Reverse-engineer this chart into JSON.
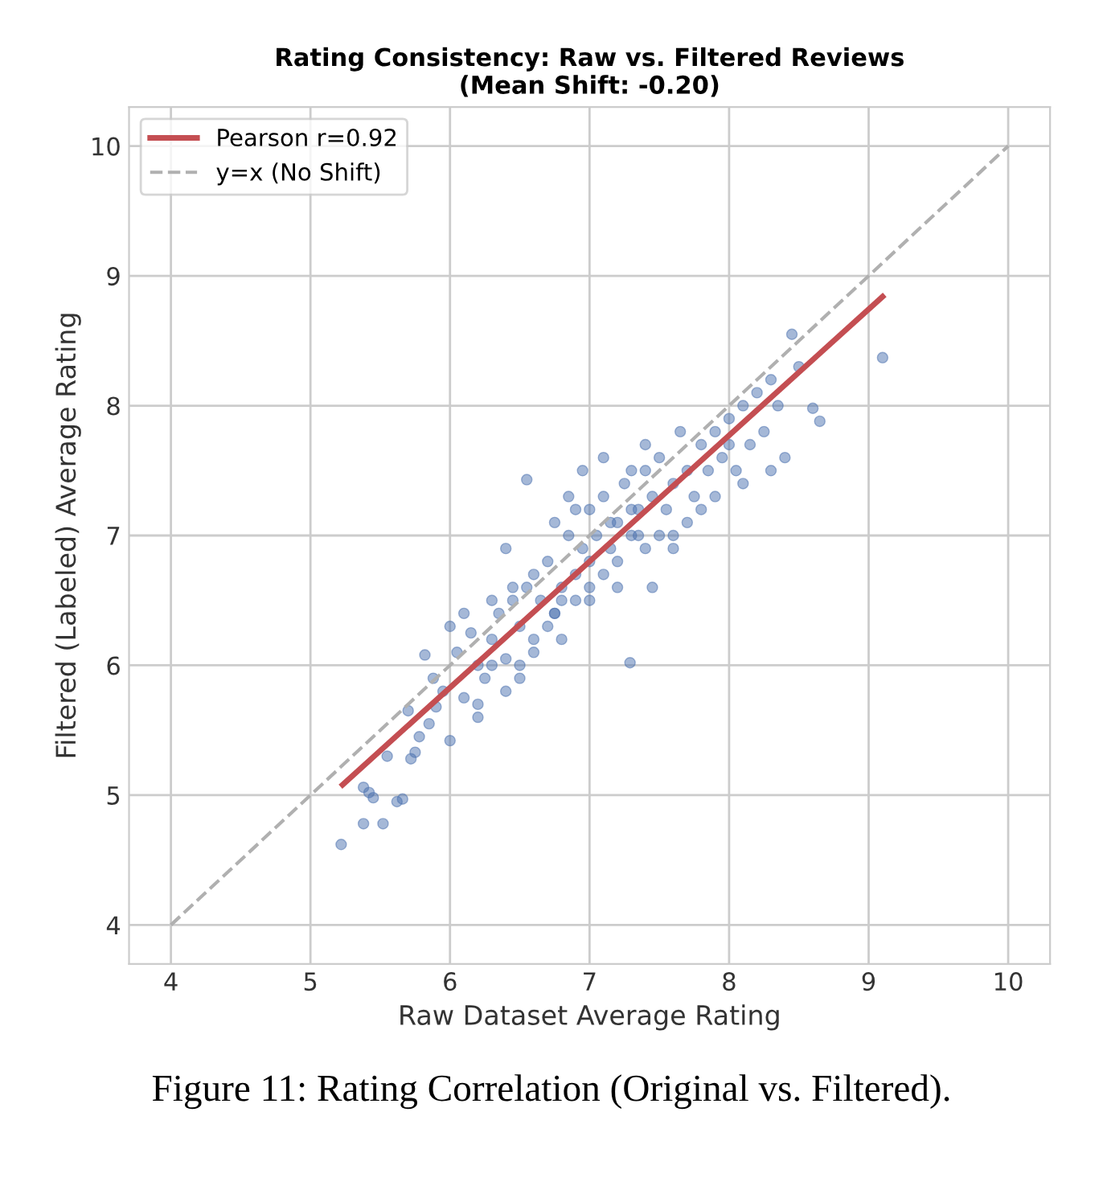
{
  "chart_data": {
    "type": "scatter",
    "title": "Rating Consistency: Raw vs. Filtered Reviews\n(Mean Shift: -0.20)",
    "xlabel": "Raw Dataset Average Rating",
    "ylabel": "Filtered (Labeled) Average Rating",
    "xlim": [
      3.7,
      10.3
    ],
    "ylim": [
      3.7,
      10.3
    ],
    "xticks": [
      4,
      5,
      6,
      7,
      8,
      9,
      10
    ],
    "yticks": [
      4,
      5,
      6,
      7,
      8,
      9,
      10
    ],
    "grid": true,
    "legend": "top left",
    "annotations": [
      "Figure 11: Rating Correlation (Original vs. Filtered)."
    ],
    "series": [
      {
        "color": "#4c72b0",
        "marker": "circle",
        "x": [
          5.22,
          5.38,
          5.38,
          5.42,
          5.45,
          5.52,
          5.62,
          5.66,
          5.55,
          5.72,
          5.75,
          5.78,
          5.85,
          5.9,
          5.95,
          5.82,
          6.0,
          5.7,
          5.88,
          6.05,
          6.1,
          6.2,
          6.15,
          6.25,
          6.3,
          6.35,
          6.4,
          6.45,
          6.5,
          6.55,
          6.1,
          6.3,
          6.2,
          6.4,
          6.6,
          6.65,
          6.7,
          6.75,
          6.8,
          6.85,
          6.9,
          6.95,
          7.0,
          6.5,
          6.6,
          6.7,
          6.8,
          6.9,
          7.0,
          7.05,
          7.1,
          7.15,
          7.2,
          7.25,
          7.3,
          7.35,
          7.4,
          6.55,
          6.75,
          6.85,
          7.0,
          7.1,
          7.2,
          7.3,
          7.4,
          7.45,
          7.5,
          7.55,
          7.6,
          7.65,
          7.7,
          7.75,
          7.8,
          7.29,
          7.45,
          7.6,
          7.7,
          7.85,
          7.9,
          7.95,
          8.0,
          8.05,
          8.1,
          8.15,
          8.2,
          8.25,
          8.3,
          8.35,
          8.4,
          8.45,
          8.5,
          8.6,
          8.65,
          9.1,
          7.1,
          6.9,
          6.4,
          6.0,
          6.3,
          6.6,
          7.0,
          7.3,
          7.6,
          7.9,
          8.1,
          8.3,
          7.4,
          7.2,
          6.8,
          6.5,
          6.2,
          7.5,
          7.8,
          8.0,
          6.95,
          7.15,
          7.35,
          6.75,
          6.45
        ],
        "values": [
          4.62,
          4.78,
          5.06,
          5.02,
          4.98,
          4.78,
          4.95,
          4.97,
          5.3,
          5.28,
          5.33,
          5.45,
          5.55,
          5.68,
          5.8,
          6.08,
          5.42,
          5.65,
          5.9,
          6.1,
          5.75,
          6.0,
          6.25,
          5.9,
          6.2,
          6.4,
          6.05,
          6.5,
          6.3,
          6.6,
          6.4,
          6.5,
          5.6,
          5.8,
          6.2,
          6.5,
          6.8,
          6.4,
          6.6,
          7.0,
          6.7,
          6.9,
          7.2,
          6.0,
          6.1,
          6.3,
          6.5,
          6.5,
          6.8,
          7.0,
          7.3,
          6.9,
          7.1,
          7.4,
          7.2,
          7.0,
          7.5,
          7.43,
          7.1,
          7.3,
          6.6,
          6.7,
          6.8,
          7.5,
          6.9,
          7.3,
          7.6,
          7.2,
          7.4,
          7.8,
          7.5,
          7.3,
          7.7,
          6.02,
          6.6,
          7.0,
          7.1,
          7.5,
          7.8,
          7.6,
          7.9,
          7.5,
          8.0,
          7.7,
          8.1,
          7.8,
          8.2,
          8.0,
          7.6,
          8.55,
          8.3,
          7.98,
          7.88,
          8.37,
          7.6,
          7.2,
          6.9,
          6.3,
          6.0,
          6.7,
          6.5,
          7.0,
          6.9,
          7.3,
          7.4,
          7.5,
          7.7,
          6.6,
          6.2,
          5.9,
          5.7,
          7.0,
          7.2,
          7.7,
          7.5,
          7.1,
          7.2,
          6.4,
          6.6
        ]
      },
      {
        "type": "line",
        "name": "Pearson r=0.92",
        "color": "#c44e52",
        "x": [
          5.23,
          9.1
        ],
        "values": [
          5.08,
          8.84
        ],
        "line_style": "solid"
      },
      {
        "type": "line",
        "name": "y=x (No Shift)",
        "color": "#b0b0b0",
        "x": [
          4,
          10
        ],
        "values": [
          4,
          10
        ],
        "line_style": "dashed"
      }
    ]
  }
}
